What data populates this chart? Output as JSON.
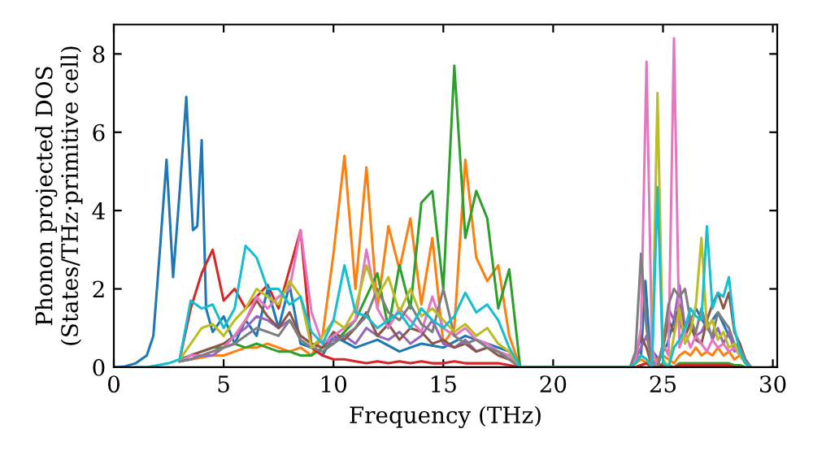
{
  "chart_data": {
    "type": "line",
    "xlabel": "Frequency (THz)",
    "ylabel": "Phonon projected DOS\n(States/THz·primitive cell)",
    "xlim": [
      0,
      30.2
    ],
    "ylim": [
      0,
      8.75
    ],
    "xticks": [
      0,
      5,
      10,
      15,
      20,
      25,
      30
    ],
    "yticks": [
      0,
      2,
      4,
      6,
      8
    ],
    "grid": false,
    "x": [
      1,
      1.5,
      2,
      2.5,
      3,
      3.5,
      4,
      4.5,
      5,
      5.5,
      6,
      6.5,
      7,
      7.5,
      8,
      8.5,
      9,
      9.5,
      10,
      10.5,
      11,
      11.5,
      12,
      12.5,
      13,
      13.5,
      14,
      14.5,
      15,
      15.5,
      16,
      16.5,
      17,
      17.5,
      18,
      18.5,
      23.5,
      23.75,
      24,
      24.25,
      24.5,
      24.75,
      25,
      25.25,
      25.5,
      25.75,
      26,
      26.25,
      26.5,
      26.75,
      27,
      27.25,
      27.5,
      27.75,
      28,
      28.25,
      28.5,
      28.75,
      29
    ],
    "series": [
      {
        "color": "#1f77b4",
        "x": [
          0,
          0.5,
          1,
          1.5,
          1.8,
          2.1,
          2.4,
          2.7,
          3.0,
          3.3,
          3.6,
          3.8,
          4.0,
          4.2,
          4.5,
          5,
          5.5,
          6,
          6.5,
          7,
          7.5,
          8,
          8.5,
          9,
          9.5,
          10,
          11,
          12,
          13,
          14,
          15,
          16,
          17,
          18,
          18.5,
          23.5,
          24,
          24.2,
          24.4,
          24.8,
          25.2,
          25.6,
          26,
          26.5,
          27,
          27.5,
          28,
          28.5,
          29
        ],
        "values": [
          0,
          0.02,
          0.1,
          0.3,
          0.8,
          3.0,
          5.3,
          2.3,
          4.5,
          6.9,
          3.5,
          3.6,
          5.8,
          1.5,
          0.9,
          1.3,
          0.6,
          1.2,
          0.8,
          2.0,
          1.0,
          2.1,
          0.6,
          0.5,
          0.3,
          0.8,
          0.5,
          0.7,
          0.4,
          0.6,
          0.5,
          0.8,
          0.6,
          0.4,
          0,
          0,
          0.3,
          2.2,
          0.5,
          0.2,
          0.6,
          1.4,
          0.8,
          1.5,
          1.0,
          1.4,
          0.8,
          0.3,
          0
        ]
      },
      {
        "color": "#ff7f0e",
        "values": [
          null,
          null,
          null,
          null,
          0.15,
          0.2,
          0.25,
          0.3,
          0.3,
          0.4,
          0.5,
          0.5,
          0.6,
          0.5,
          0.4,
          0.5,
          0.3,
          0.8,
          2.9,
          5.4,
          2.0,
          5.1,
          1.5,
          3.6,
          2.5,
          3.8,
          1.6,
          3.3,
          0.6,
          1.0,
          5.3,
          2.8,
          2.2,
          2.6,
          0.8,
          0,
          0,
          0.1,
          0.2,
          0.1,
          0,
          0.2,
          0.3,
          0.2,
          0.1,
          0.3,
          0.4,
          0.3,
          0.5,
          0.3,
          0.4,
          0.3,
          0.5,
          0.3,
          0.4,
          0.2,
          0.3,
          0.1,
          0
        ]
      },
      {
        "color": "#2ca02c",
        "values": [
          null,
          null,
          null,
          null,
          0.2,
          0.3,
          0.4,
          0.5,
          0.5,
          0.6,
          0.5,
          0.6,
          0.5,
          0.4,
          0.4,
          0.3,
          0.3,
          0.5,
          0.6,
          0.9,
          1.2,
          1.8,
          2.4,
          1.0,
          2.6,
          1.5,
          4.2,
          4.5,
          2.0,
          7.7,
          3.3,
          4.5,
          3.8,
          1.5,
          2.5,
          0,
          0,
          0,
          0.05,
          0.1,
          0,
          0,
          0.1,
          0.05,
          0,
          0.1,
          0.1,
          0.1,
          0.1,
          0.1,
          0.1,
          0.1,
          0.1,
          0.1,
          0.1,
          0.05,
          0.05,
          0,
          0
        ]
      },
      {
        "color": "#d62728",
        "values": [
          null,
          null,
          null,
          null,
          0.2,
          1.5,
          2.4,
          3.0,
          1.7,
          2.0,
          1.5,
          1.8,
          2.1,
          1.5,
          2.5,
          3.5,
          0.5,
          0.3,
          0.2,
          0.2,
          0.15,
          0.1,
          0.15,
          0.1,
          0.15,
          0.1,
          0.15,
          0.1,
          0.1,
          0.15,
          0.1,
          0.1,
          0.1,
          0.1,
          0.05,
          0,
          0,
          0,
          0.05,
          0.1,
          0,
          0,
          0.05,
          0,
          0,
          0.05,
          0.05,
          0.05,
          0.05,
          0.05,
          0.05,
          0.05,
          0.05,
          0.05,
          0.05,
          0,
          0,
          null,
          null
        ]
      },
      {
        "color": "#9467bd",
        "values": [
          null,
          null,
          null,
          null,
          0.15,
          0.2,
          0.3,
          0.3,
          0.5,
          0.8,
          1.0,
          1.3,
          1.2,
          1.0,
          1.2,
          0.8,
          0.6,
          0.5,
          0.7,
          0.8,
          0.6,
          1.0,
          0.8,
          0.7,
          0.9,
          0.6,
          0.8,
          1.2,
          0.6,
          0.5,
          0.7,
          0.4,
          0.5,
          0.4,
          0.2,
          0,
          0,
          0.2,
          0.5,
          0.8,
          0.2,
          0,
          0.6,
          1.5,
          1.2,
          2.1,
          1.0,
          1.3,
          0.8,
          0.9,
          1.2,
          0.7,
          1.0,
          0.6,
          0.9,
          0.4,
          0.5,
          0.2,
          0
        ]
      },
      {
        "color": "#8c564b",
        "values": [
          null,
          null,
          null,
          null,
          0.15,
          0.3,
          0.4,
          0.5,
          0.6,
          0.8,
          1.2,
          1.7,
          1.3,
          1.0,
          1.4,
          0.8,
          0.6,
          0.5,
          0.9,
          0.7,
          1.0,
          1.4,
          0.8,
          1.1,
          0.7,
          1.0,
          0.9,
          0.6,
          0.7,
          0.5,
          0.6,
          0.4,
          0.5,
          0.3,
          0.2,
          0,
          0,
          0.3,
          0.8,
          0.5,
          0,
          0,
          0.5,
          1.2,
          0.9,
          1.6,
          0.8,
          1.1,
          0.7,
          0.6,
          1.2,
          1.6,
          1.9,
          1.5,
          1.9,
          0.9,
          0.6,
          0.2,
          0
        ]
      },
      {
        "color": "#e377c2",
        "values": [
          null,
          null,
          null,
          null,
          0.15,
          0.3,
          0.3,
          0.4,
          0.5,
          0.8,
          1.2,
          1.8,
          1.5,
          1.8,
          2.0,
          3.5,
          1.4,
          0.6,
          0.8,
          1.0,
          1.2,
          3.0,
          1.5,
          1.0,
          1.5,
          1.2,
          0.9,
          1.8,
          1.0,
          0.8,
          1.0,
          0.7,
          0.6,
          0.4,
          0.3,
          0,
          0,
          0.2,
          1.0,
          7.8,
          0.5,
          0,
          0.6,
          0.3,
          8.4,
          0.5,
          0.9,
          0.5,
          0.8,
          0.6,
          0.4,
          0.7,
          0.5,
          0.6,
          0.4,
          0.5,
          0.3,
          0.1,
          0
        ]
      },
      {
        "color": "#7f7f7f",
        "values": [
          null,
          null,
          null,
          null,
          0.15,
          0.2,
          0.3,
          0.4,
          0.5,
          0.6,
          0.8,
          1.0,
          0.9,
          0.8,
          1.2,
          0.7,
          0.5,
          0.4,
          0.6,
          0.8,
          1.0,
          1.3,
          2.0,
          1.4,
          1.2,
          1.6,
          1.1,
          0.9,
          2.0,
          0.8,
          0.6,
          0.7,
          0.5,
          0.4,
          0.2,
          0,
          0,
          0.4,
          2.9,
          1.0,
          0,
          0,
          0.6,
          1.6,
          2.0,
          1.8,
          2.0,
          1.2,
          0.9,
          1.5,
          1.0,
          0.8,
          1.4,
          1.2,
          1.0,
          0.6,
          0.5,
          0.2,
          0
        ]
      },
      {
        "color": "#bcbd22",
        "values": [
          null,
          null,
          null,
          null,
          0.2,
          0.6,
          1.0,
          1.1,
          0.8,
          1.2,
          1.5,
          2.0,
          1.8,
          1.6,
          2.2,
          1.8,
          0.5,
          0.8,
          1.2,
          1.0,
          1.5,
          2.6,
          1.8,
          2.3,
          1.4,
          2.0,
          1.3,
          1.5,
          1.2,
          0.9,
          1.1,
          0.8,
          1.0,
          0.6,
          0.4,
          0,
          0,
          0.1,
          0.3,
          0.2,
          0,
          7.0,
          0.2,
          0,
          0.8,
          1.5,
          0.6,
          0.9,
          1.6,
          3.3,
          1.0,
          1.2,
          0.7,
          0.9,
          0.5,
          0.6,
          0.3,
          0.1,
          0
        ]
      },
      {
        "color": "#17becf",
        "values": [
          0,
          0,
          0.05,
          0.1,
          0.2,
          1.7,
          1.5,
          1.6,
          1.0,
          1.5,
          3.1,
          2.8,
          2.0,
          2.0,
          1.6,
          1.8,
          0.9,
          0.6,
          1.2,
          2.6,
          1.4,
          1.3,
          1.0,
          1.2,
          1.4,
          1.0,
          1.5,
          1.2,
          1.0,
          1.3,
          1.9,
          1.4,
          1.6,
          1.2,
          0.5,
          0,
          0,
          0.1,
          0.3,
          0.2,
          0,
          4.6,
          0.1,
          0,
          0.5,
          0.7,
          1.0,
          1.5,
          1.3,
          1.2,
          3.6,
          1.5,
          1.9,
          1.8,
          2.3,
          1.0,
          0.4,
          0.1,
          0
        ]
      }
    ]
  }
}
